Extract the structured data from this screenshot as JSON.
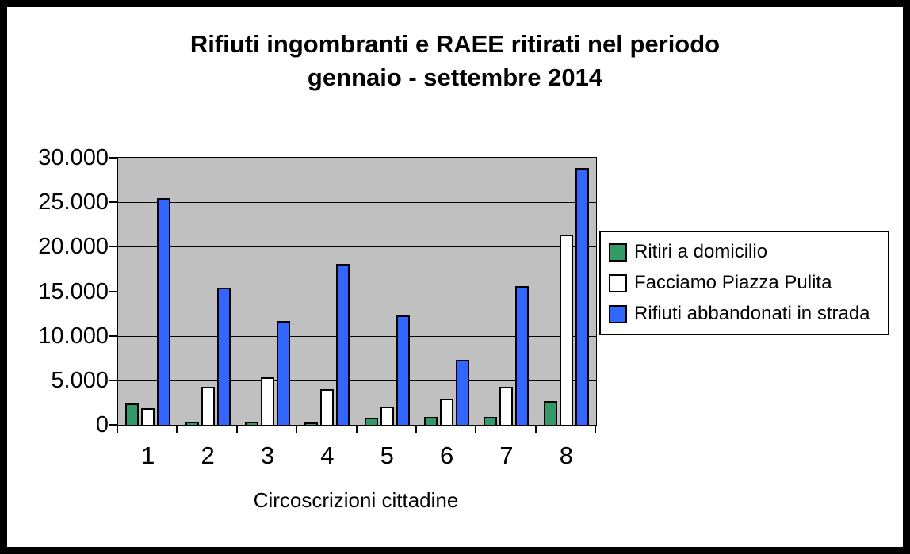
{
  "page": {
    "background": "#FFFFFF",
    "frame_color": "#000000",
    "plot_background": "#C0C0C0"
  },
  "title": {
    "line1": "Rifiuti ingombranti e RAEE ritirati nel periodo",
    "line2": "gennaio - settembre 2014"
  },
  "chart_data": {
    "type": "bar",
    "title": "Rifiuti ingombranti e RAEE ritirati nel periodo gennaio - settembre 2014",
    "xlabel": "Circoscrizioni cittadine",
    "ylabel": "",
    "categories": [
      "1",
      "2",
      "3",
      "4",
      "5",
      "6",
      "7",
      "8"
    ],
    "series": [
      {
        "name": "Ritiri a domicilio",
        "color": "#339966",
        "values": [
          2400,
          350,
          350,
          300,
          800,
          900,
          900,
          2700
        ]
      },
      {
        "name": "Facciamo Piazza Pulita",
        "color": "#FFFFFF",
        "values": [
          1900,
          4300,
          5350,
          4050,
          2050,
          2950,
          4250,
          21400
        ]
      },
      {
        "name": "Rifiuti abbandonati in strada",
        "color": "#3366FF",
        "values": [
          25500,
          15400,
          11700,
          18100,
          12300,
          7300,
          15600,
          28800
        ]
      }
    ],
    "ylim": [
      0,
      30000
    ],
    "ytick_step": 5000,
    "ytick_labels": [
      "0",
      "5.000",
      "10.000",
      "15.000",
      "20.000",
      "25.000",
      "30.000"
    ],
    "grid": true,
    "legend_position": "right",
    "plot_border_color": "#000000",
    "bar_border_color": "#000000"
  }
}
